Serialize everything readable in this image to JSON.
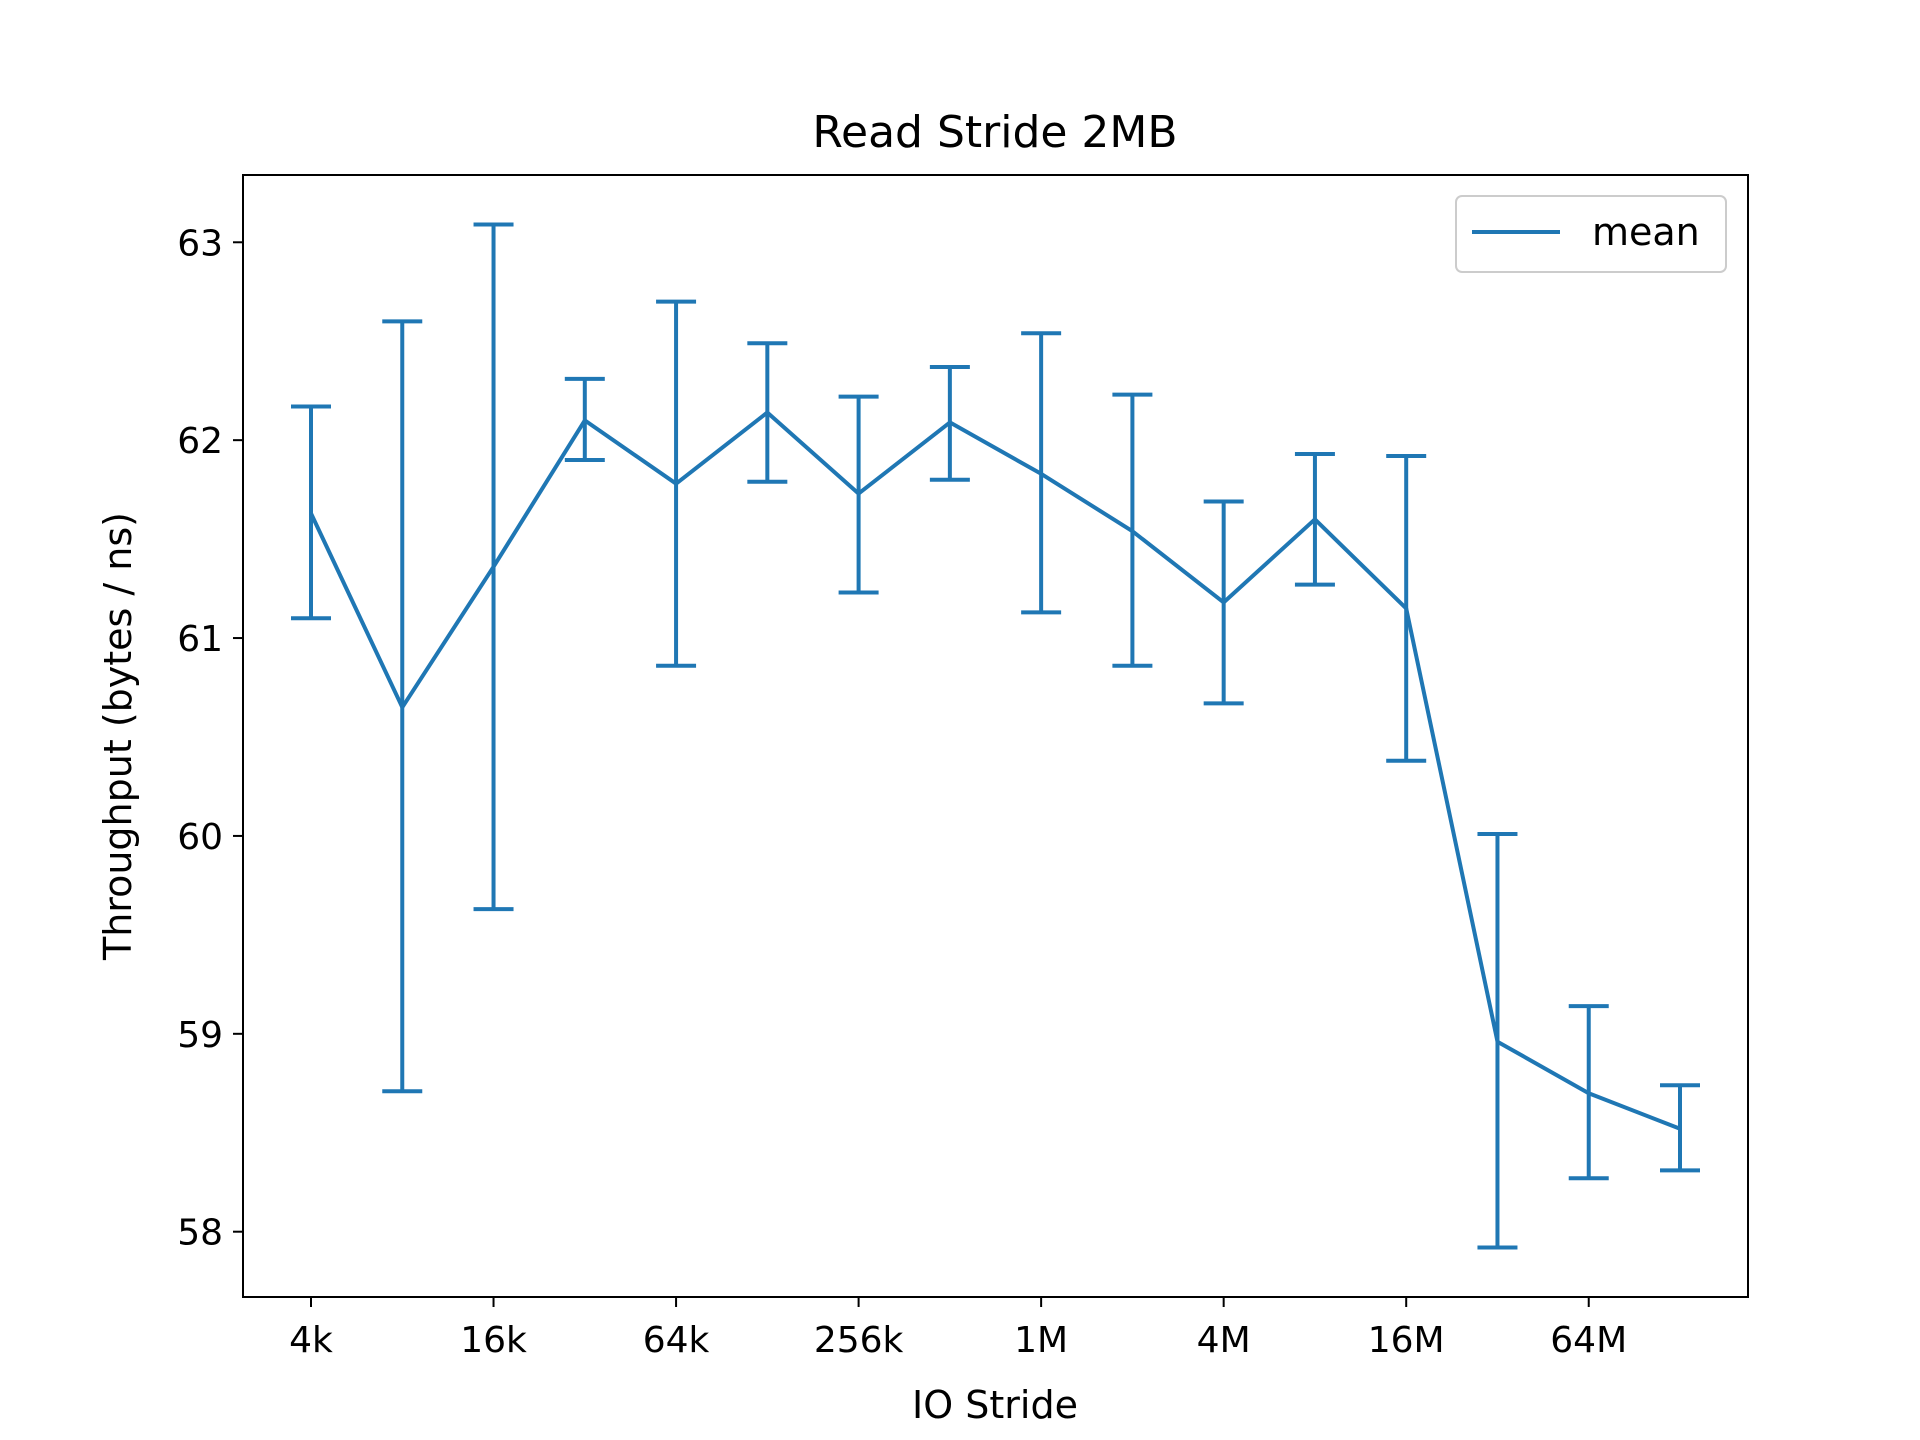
{
  "chart_data": {
    "type": "line",
    "title": "Read Stride 2MB",
    "xlabel": "IO Stride",
    "ylabel": "Throughput (bytes / ns)",
    "x_scale": "log2",
    "x": [
      "4k",
      "8k",
      "16k",
      "32k",
      "64k",
      "128k",
      "256k",
      "512k",
      "1M",
      "2M",
      "4M",
      "8M",
      "16M",
      "32M",
      "64M",
      "128M"
    ],
    "x_ticks": [
      "4k",
      "16k",
      "64k",
      "256k",
      "1M",
      "4M",
      "16M",
      "64M"
    ],
    "y_ticks": [
      58,
      59,
      60,
      61,
      62,
      63
    ],
    "ylim": [
      57.67,
      63.34
    ],
    "series": [
      {
        "name": "mean",
        "color": "#1f77b4",
        "values": [
          61.63,
          60.65,
          61.36,
          62.1,
          61.78,
          62.14,
          61.73,
          62.09,
          61.83,
          61.54,
          61.18,
          61.6,
          61.15,
          58.96,
          58.7,
          58.52
        ],
        "error_low": [
          61.1,
          58.71,
          59.63,
          61.9,
          60.86,
          61.79,
          61.23,
          61.8,
          61.13,
          60.86,
          60.67,
          61.27,
          60.38,
          57.92,
          58.27,
          58.31
        ],
        "error_high": [
          62.17,
          62.6,
          63.09,
          62.31,
          62.7,
          62.49,
          62.22,
          62.37,
          62.54,
          62.23,
          61.69,
          61.93,
          61.92,
          60.01,
          59.14,
          58.74
        ]
      }
    ],
    "legend_position": "top-right",
    "grid": false
  }
}
